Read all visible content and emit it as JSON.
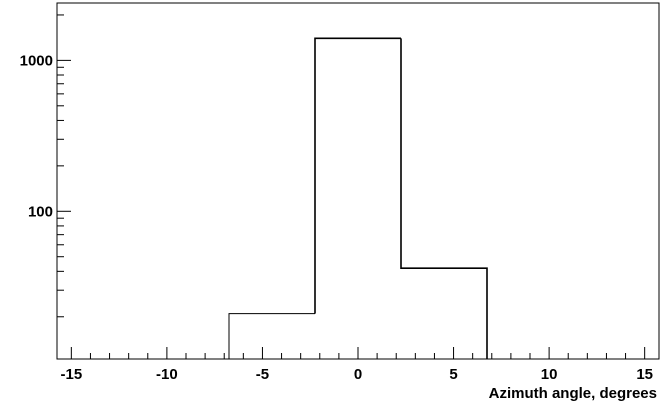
{
  "chart_data": {
    "type": "histogram",
    "title": "",
    "xlabel": "Azimuth angle, degrees",
    "ylabel": "",
    "xlim": [
      -15.75,
      15.75
    ],
    "ylim": [
      10.5,
      2400
    ],
    "yscale": "log",
    "grid": false,
    "legend": "none",
    "x_ticks": [
      -15,
      -10,
      -5,
      0,
      5,
      10,
      15
    ],
    "y_ticks": [
      100,
      1000
    ],
    "bins": [
      {
        "x0": -6.75,
        "x1": -2.25,
        "value": 21
      },
      {
        "x0": -2.25,
        "x1": 2.25,
        "value": 1400
      },
      {
        "x0": 2.25,
        "x1": 6.75,
        "value": 42
      }
    ]
  }
}
